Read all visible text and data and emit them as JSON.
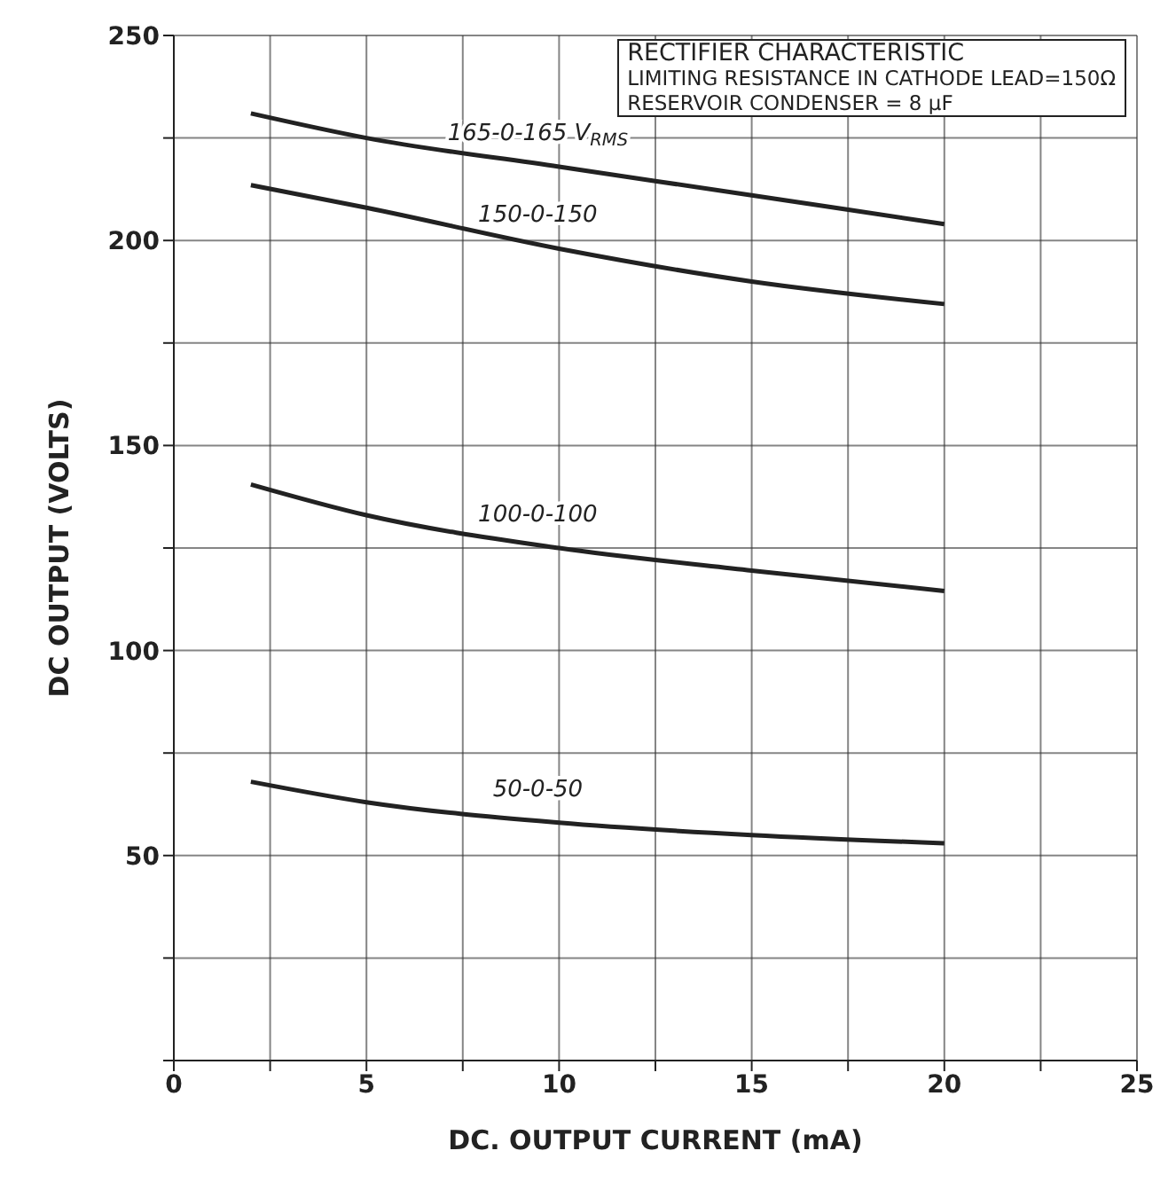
{
  "chart_data": {
    "type": "line",
    "title": "RECTIFIER CHARACTERISTIC",
    "xlabel": "DC. OUTPUT CURRENT (mA)",
    "ylabel": "DC OUTPUT (VOLTS)",
    "annotations": [
      "LIMITING RESISTANCE IN CATHODE LEAD=150Ω",
      "RESERVOIR CONDENSER = 8 µF"
    ],
    "x": [
      2,
      5,
      10,
      15,
      20
    ],
    "series": [
      {
        "name": "165-0-165 V$_{RMS}$",
        "color": "#222222",
        "values": [
          231,
          225,
          218,
          211,
          204
        ]
      },
      {
        "name": "150-0-150",
        "color": "#222222",
        "values": [
          213.5,
          208,
          198,
          190,
          184.5
        ]
      },
      {
        "name": "100-0-100",
        "color": "#222222",
        "values": [
          140.5,
          133,
          125,
          119.5,
          114.5
        ]
      },
      {
        "name": "50-0-50",
        "color": "#222222",
        "values": [
          68,
          63,
          58,
          55,
          53
        ]
      }
    ],
    "xlim": [
      0,
      25
    ],
    "xticks": [
      0,
      {
        "value": 2.5,
        "label": null
      },
      5,
      {
        "value": 7.5,
        "label": null
      },
      10,
      {
        "value": 12.5,
        "label": null
      },
      15,
      {
        "value": 17.5,
        "label": null
      },
      20,
      {
        "value": 22.5,
        "label": null
      },
      25
    ],
    "ylim": [
      0,
      250
    ],
    "yticks": [
      {
        "value": 0,
        "label": null
      },
      {
        "value": 25,
        "label": null
      },
      50,
      {
        "value": 75,
        "label": null
      },
      100,
      {
        "value": 125,
        "label": null
      },
      150,
      {
        "value": 175,
        "label": null
      },
      200,
      {
        "value": 225,
        "label": null
      },
      250
    ],
    "grid": true,
    "marker": "none",
    "line_style": "solid"
  }
}
